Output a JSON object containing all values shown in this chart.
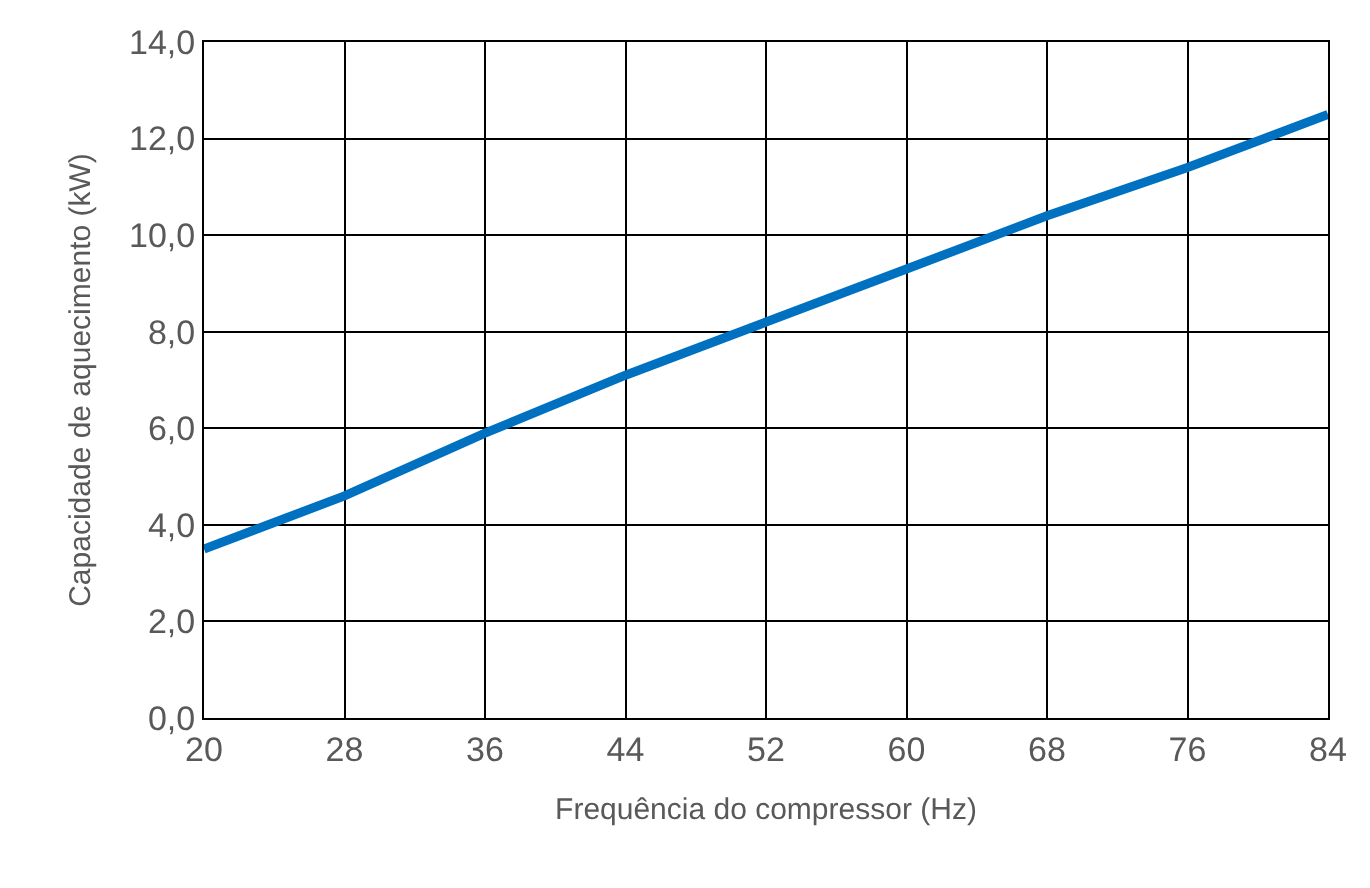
{
  "chart_data": {
    "type": "line",
    "xlabel": "Frequência do compressor (Hz)",
    "ylabel": "Capacidade de aquecimento (kW)",
    "x": [
      20,
      28,
      36,
      44,
      52,
      60,
      68,
      76,
      84
    ],
    "series": [
      {
        "color": "#0070c0",
        "values": [
          3.5,
          4.6,
          5.9,
          7.1,
          8.2,
          9.3,
          10.4,
          11.4,
          12.5
        ]
      }
    ],
    "xlim": [
      20,
      84
    ],
    "xticks": [
      20,
      28,
      36,
      44,
      52,
      60,
      68,
      76,
      84
    ],
    "ylim": [
      0,
      14
    ],
    "yticks": [
      {
        "value": 0,
        "label": "0,0"
      },
      {
        "value": 2,
        "label": "2,0"
      },
      {
        "value": 4,
        "label": "4,0"
      },
      {
        "value": 6,
        "label": "6,0"
      },
      {
        "value": 8,
        "label": "8,0"
      },
      {
        "value": 10,
        "label": "10,0"
      },
      {
        "value": 12,
        "label": "12,0"
      },
      {
        "value": 14,
        "label": "14,0"
      }
    ],
    "grid": true,
    "marker": "none",
    "line_style": "solid"
  }
}
